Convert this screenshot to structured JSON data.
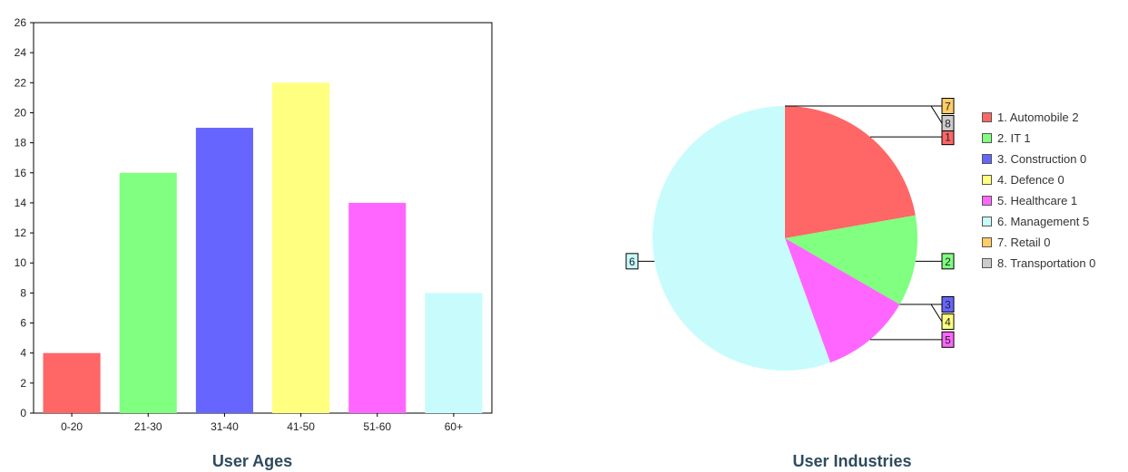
{
  "chart_data": [
    {
      "type": "bar",
      "title": "User Ages",
      "categories": [
        "0-20",
        "21-30",
        "31-40",
        "41-50",
        "51-60",
        "60+"
      ],
      "values": [
        4,
        16,
        19,
        22,
        14,
        8
      ],
      "colors": [
        "#ff6666",
        "#80ff80",
        "#6666ff",
        "#ffff80",
        "#ff66ff",
        "#c8fcfc"
      ],
      "ylim": [
        0,
        26
      ],
      "yticks": [
        "0",
        "2",
        "4",
        "6",
        "8",
        "10",
        "12",
        "14",
        "16",
        "18",
        "20",
        "22",
        "24",
        "26"
      ],
      "grid": false,
      "legend": "none"
    },
    {
      "type": "pie",
      "title": "User Industries",
      "slices": [
        {
          "index": "1",
          "name": "Automobile",
          "value": 2,
          "color": "#ff6666",
          "legend": "1. Automobile 2"
        },
        {
          "index": "2",
          "name": "IT",
          "value": 1,
          "color": "#80ff80",
          "legend": "2. IT 1"
        },
        {
          "index": "3",
          "name": "Construction",
          "value": 0,
          "color": "#6666ff",
          "legend": "3. Construction 0"
        },
        {
          "index": "4",
          "name": "Defence",
          "value": 0,
          "color": "#ffff80",
          "legend": "4. Defence 0"
        },
        {
          "index": "5",
          "name": "Healthcare",
          "value": 1,
          "color": "#ff66ff",
          "legend": "5. Healthcare 1"
        },
        {
          "index": "6",
          "name": "Management",
          "value": 5,
          "color": "#c8fcfc",
          "legend": "6. Management 5"
        },
        {
          "index": "7",
          "name": "Retail",
          "value": 0,
          "color": "#ffcc66",
          "legend": "7. Retail 0"
        },
        {
          "index": "8",
          "name": "Transportation",
          "value": 0,
          "color": "#cccccc",
          "legend": "8. Transportation 0"
        }
      ],
      "legend_position": "right"
    }
  ]
}
